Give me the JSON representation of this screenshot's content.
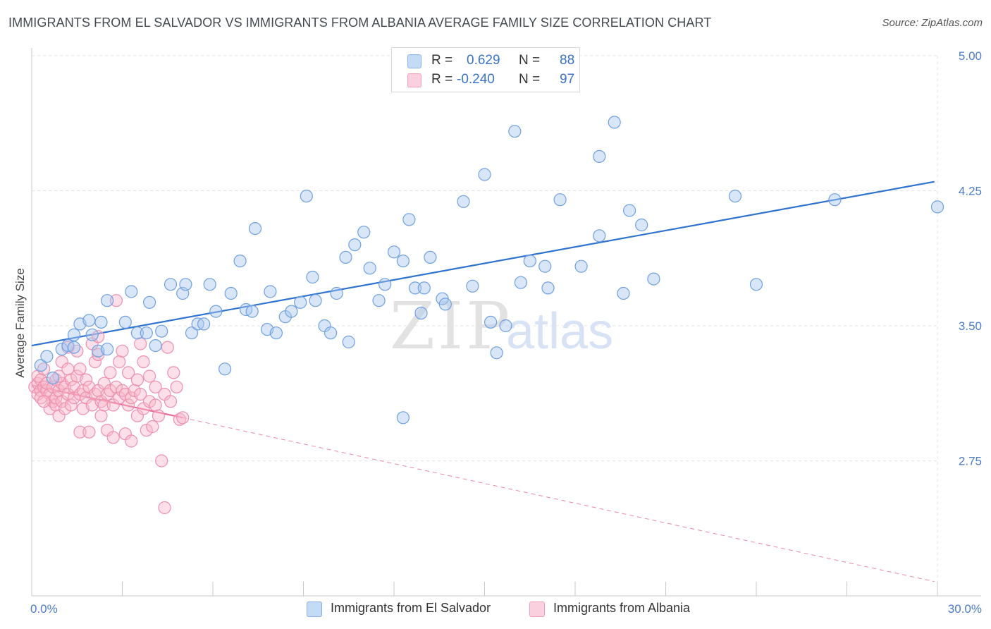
{
  "header": {
    "title": "IMMIGRANTS FROM EL SALVADOR VS IMMIGRANTS FROM ALBANIA AVERAGE FAMILY SIZE CORRELATION CHART",
    "source": "Source: ZipAtlas.com"
  },
  "watermark": {
    "zip": "ZIP",
    "atlas": "atlas"
  },
  "legend": {
    "rows": [
      {
        "r_label": "R =",
        "r_value": "0.629",
        "n_label": "N =",
        "n_value": "88",
        "color": "#a8c8f0"
      },
      {
        "r_label": "R =",
        "r_value": "-0.240",
        "n_label": "N =",
        "n_value": "97",
        "color": "#f8b8cc"
      }
    ]
  },
  "bottom_legend": {
    "items": [
      {
        "label": "Immigrants from El Salvador",
        "color": "#a8c8f0"
      },
      {
        "label": "Immigrants from Albania",
        "color": "#f8b8cc"
      }
    ]
  },
  "chart_data": {
    "type": "scatter",
    "title": "IMMIGRANTS FROM EL SALVADOR VS IMMIGRANTS FROM ALBANIA AVERAGE FAMILY SIZE CORRELATION CHART",
    "xlabel": "",
    "ylabel": "Average Family Size",
    "xlim": [
      0,
      30
    ],
    "ylim": [
      2.25,
      5.1
    ],
    "x_tick_labels": [
      "0.0%",
      "30.0%"
    ],
    "y_ticks": [
      5.0,
      4.25,
      3.5,
      2.75
    ],
    "y_tick_labels": [
      "5.00",
      "4.25",
      "3.50",
      "2.75"
    ],
    "grid": true,
    "legend_position": "top-center",
    "series": [
      {
        "name": "Immigrants from El Salvador",
        "color": "#6fa0e0",
        "fill": "#a8c8f0",
        "trend": {
          "x": [
            0.0,
            29.9
          ],
          "y": [
            3.39,
            4.3
          ],
          "style": "solid",
          "color": "#2f72cf"
        },
        "points": [
          [
            0.3,
            3.28
          ],
          [
            0.5,
            3.33
          ],
          [
            0.7,
            3.21
          ],
          [
            1.0,
            3.37
          ],
          [
            1.2,
            3.39
          ],
          [
            1.4,
            3.38
          ],
          [
            1.4,
            3.45
          ],
          [
            1.6,
            3.51
          ],
          [
            1.9,
            3.53
          ],
          [
            2.0,
            3.45
          ],
          [
            2.2,
            3.36
          ],
          [
            2.3,
            3.52
          ],
          [
            2.5,
            3.37
          ],
          [
            2.5,
            3.64
          ],
          [
            3.1,
            3.52
          ],
          [
            3.3,
            3.69
          ],
          [
            3.5,
            3.46
          ],
          [
            3.8,
            3.46
          ],
          [
            3.9,
            3.63
          ],
          [
            4.1,
            3.39
          ],
          [
            4.3,
            3.47
          ],
          [
            4.6,
            3.73
          ],
          [
            5.0,
            3.68
          ],
          [
            5.1,
            3.73
          ],
          [
            5.3,
            3.46
          ],
          [
            5.5,
            3.51
          ],
          [
            5.7,
            3.51
          ],
          [
            5.9,
            3.73
          ],
          [
            6.1,
            3.58
          ],
          [
            6.4,
            3.26
          ],
          [
            6.6,
            3.68
          ],
          [
            6.9,
            3.86
          ],
          [
            7.1,
            3.59
          ],
          [
            7.3,
            3.58
          ],
          [
            7.4,
            4.04
          ],
          [
            7.8,
            3.48
          ],
          [
            7.9,
            3.69
          ],
          [
            8.1,
            3.46
          ],
          [
            8.4,
            3.55
          ],
          [
            8.6,
            3.58
          ],
          [
            8.9,
            3.63
          ],
          [
            9.1,
            4.22
          ],
          [
            9.3,
            3.77
          ],
          [
            9.4,
            3.64
          ],
          [
            9.7,
            3.5
          ],
          [
            9.9,
            3.46
          ],
          [
            10.1,
            3.68
          ],
          [
            10.4,
            3.88
          ],
          [
            10.5,
            3.41
          ],
          [
            10.7,
            3.95
          ],
          [
            11.0,
            4.02
          ],
          [
            11.2,
            3.82
          ],
          [
            11.5,
            3.64
          ],
          [
            11.7,
            3.73
          ],
          [
            12.0,
            3.91
          ],
          [
            12.3,
            3.86
          ],
          [
            12.3,
            2.99
          ],
          [
            12.5,
            4.09
          ],
          [
            12.7,
            3.71
          ],
          [
            12.9,
            3.57
          ],
          [
            13.0,
            3.71
          ],
          [
            13.2,
            3.88
          ],
          [
            13.6,
            3.65
          ],
          [
            13.7,
            3.62
          ],
          [
            14.3,
            4.19
          ],
          [
            14.6,
            3.72
          ],
          [
            15.0,
            4.34
          ],
          [
            15.2,
            3.52
          ],
          [
            15.4,
            3.35
          ],
          [
            15.7,
            3.5
          ],
          [
            16.0,
            4.58
          ],
          [
            16.2,
            3.74
          ],
          [
            16.5,
            3.86
          ],
          [
            17.0,
            3.83
          ],
          [
            17.1,
            3.71
          ],
          [
            17.5,
            4.2
          ],
          [
            18.2,
            3.83
          ],
          [
            18.8,
            4.0
          ],
          [
            18.8,
            4.44
          ],
          [
            19.3,
            4.63
          ],
          [
            19.6,
            3.68
          ],
          [
            19.8,
            4.14
          ],
          [
            20.2,
            4.06
          ],
          [
            20.6,
            3.76
          ],
          [
            23.3,
            4.22
          ],
          [
            24.0,
            3.73
          ],
          [
            26.6,
            4.2
          ],
          [
            30.0,
            4.16
          ]
        ]
      },
      {
        "name": "Immigrants from Albania",
        "color": "#ee8fae",
        "fill": "#f8b8cc",
        "trend": {
          "x": [
            0.0,
            5.0
          ],
          "y": [
            3.17,
            2.99
          ],
          "style": "solid",
          "color": "#e86a94",
          "extension": {
            "x": [
              5.0,
              29.9
            ],
            "y": [
              2.99,
              2.08
            ],
            "style": "dashed"
          }
        },
        "points": [
          [
            0.1,
            3.16
          ],
          [
            0.2,
            3.12
          ],
          [
            0.2,
            3.18
          ],
          [
            0.2,
            3.22
          ],
          [
            0.3,
            3.14
          ],
          [
            0.3,
            3.1
          ],
          [
            0.3,
            3.2
          ],
          [
            0.4,
            3.16
          ],
          [
            0.4,
            3.26
          ],
          [
            0.5,
            3.14
          ],
          [
            0.5,
            3.18
          ],
          [
            0.6,
            3.12
          ],
          [
            0.6,
            3.04
          ],
          [
            0.7,
            3.16
          ],
          [
            0.7,
            3.08
          ],
          [
            0.8,
            3.06
          ],
          [
            0.8,
            3.2
          ],
          [
            0.8,
            3.1
          ],
          [
            0.9,
            3.14
          ],
          [
            0.9,
            3.0
          ],
          [
            1.0,
            3.18
          ],
          [
            1.0,
            3.08
          ],
          [
            1.0,
            3.3
          ],
          [
            1.1,
            3.16
          ],
          [
            1.1,
            3.04
          ],
          [
            1.2,
            3.12
          ],
          [
            1.2,
            3.26
          ],
          [
            1.3,
            3.06
          ],
          [
            1.3,
            3.2
          ],
          [
            1.4,
            3.16
          ],
          [
            1.4,
            3.1
          ],
          [
            1.5,
            3.22
          ],
          [
            1.5,
            3.36
          ],
          [
            1.6,
            3.12
          ],
          [
            1.6,
            2.91
          ],
          [
            1.7,
            3.14
          ],
          [
            1.7,
            3.04
          ],
          [
            1.8,
            3.2
          ],
          [
            1.8,
            3.1
          ],
          [
            1.9,
            2.91
          ],
          [
            1.9,
            3.16
          ],
          [
            2.0,
            3.06
          ],
          [
            2.0,
            3.4
          ],
          [
            2.1,
            3.12
          ],
          [
            2.1,
            3.3
          ],
          [
            2.2,
            3.14
          ],
          [
            2.2,
            3.44
          ],
          [
            2.3,
            3.08
          ],
          [
            2.3,
            3.0
          ],
          [
            2.4,
            3.18
          ],
          [
            2.4,
            3.06
          ],
          [
            2.5,
            3.12
          ],
          [
            2.5,
            2.92
          ],
          [
            2.6,
            3.24
          ],
          [
            2.6,
            3.14
          ],
          [
            2.7,
            3.06
          ],
          [
            2.7,
            2.88
          ],
          [
            2.8,
            3.16
          ],
          [
            2.8,
            3.64
          ],
          [
            2.9,
            3.1
          ],
          [
            2.9,
            3.3
          ],
          [
            3.0,
            3.14
          ],
          [
            3.0,
            3.36
          ],
          [
            3.1,
            3.12
          ],
          [
            3.1,
            2.9
          ],
          [
            3.2,
            3.06
          ],
          [
            3.2,
            3.24
          ],
          [
            3.3,
            3.1
          ],
          [
            3.3,
            2.86
          ],
          [
            3.4,
            3.14
          ],
          [
            3.5,
            3.0
          ],
          [
            3.5,
            3.2
          ],
          [
            3.6,
            3.12
          ],
          [
            3.7,
            3.04
          ],
          [
            3.7,
            3.3
          ],
          [
            3.8,
            2.92
          ],
          [
            3.9,
            3.08
          ],
          [
            3.9,
            3.22
          ],
          [
            4.0,
            2.94
          ],
          [
            4.1,
            3.16
          ],
          [
            4.1,
            3.06
          ],
          [
            4.2,
            3.0
          ],
          [
            4.3,
            2.75
          ],
          [
            4.4,
            3.12
          ],
          [
            4.4,
            2.49
          ],
          [
            4.5,
            3.38
          ],
          [
            4.6,
            3.08
          ],
          [
            4.7,
            3.24
          ],
          [
            4.8,
            3.16
          ],
          [
            4.9,
            2.98
          ],
          [
            5.0,
            2.99
          ],
          [
            1.2,
            3.38
          ],
          [
            0.9,
            3.22
          ],
          [
            2.2,
            3.34
          ],
          [
            3.6,
            3.4
          ],
          [
            0.4,
            3.08
          ],
          [
            1.6,
            3.26
          ]
        ]
      }
    ]
  }
}
